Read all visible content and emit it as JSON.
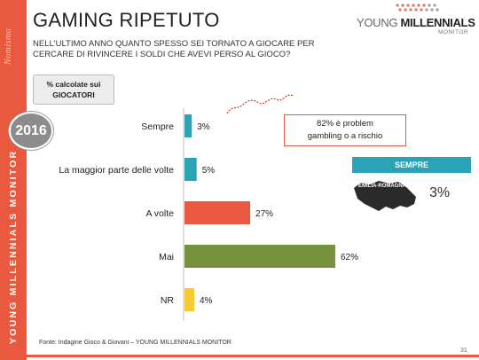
{
  "header": {
    "title": "GAMING RIPETUTO",
    "subtitle": "NELL'ULTIMO ANNO QUANTO SPESSO SEI TORNATO A GIOCARE PER CERCARE DI RIVINCERE I SOLDI CHE AVEVI PERSO AL GIOCO?"
  },
  "sidebar": {
    "brand": "Nomisma",
    "title": "YOUNG MILLENNIALS MONITOR"
  },
  "logo": {
    "text_light": "YOUNG ",
    "text_bold": "MILLENNIALS",
    "sub": "MONITOR"
  },
  "badges": {
    "calc_line1": "% calcolate sui",
    "calc_line2": "GIOCATORI",
    "year": "2016"
  },
  "callout": {
    "line1": "82% è problem",
    "line2": "gambling o a rischio"
  },
  "region_panel": {
    "banner": "SEMPRE",
    "region": "EMILIA-ROMAGNA",
    "value": "3%"
  },
  "footer": {
    "source": "Fonte: Indagine Gioco & Giovani – YOUNG MILLENNIALS MONITOR",
    "page": "31"
  },
  "colors": {
    "accent": "#e8593f",
    "teal": "#2aa4b5",
    "green": "#76923c",
    "yellow": "#f7c933"
  },
  "chart_data": {
    "type": "bar",
    "orientation": "horizontal",
    "categories": [
      "Sempre",
      "La maggior parte delle volte",
      "A volte",
      "Mai",
      "NR"
    ],
    "values": [
      3,
      5,
      27,
      62,
      4
    ],
    "data_labels": [
      "3%",
      "5%",
      "27%",
      "62%",
      "4%"
    ],
    "bar_colors": [
      "#2aa4b5",
      "#2aa4b5",
      "#e8593f",
      "#76923c",
      "#f7c933"
    ],
    "xlim": [
      0,
      62
    ],
    "grid": false,
    "legend": "none"
  }
}
